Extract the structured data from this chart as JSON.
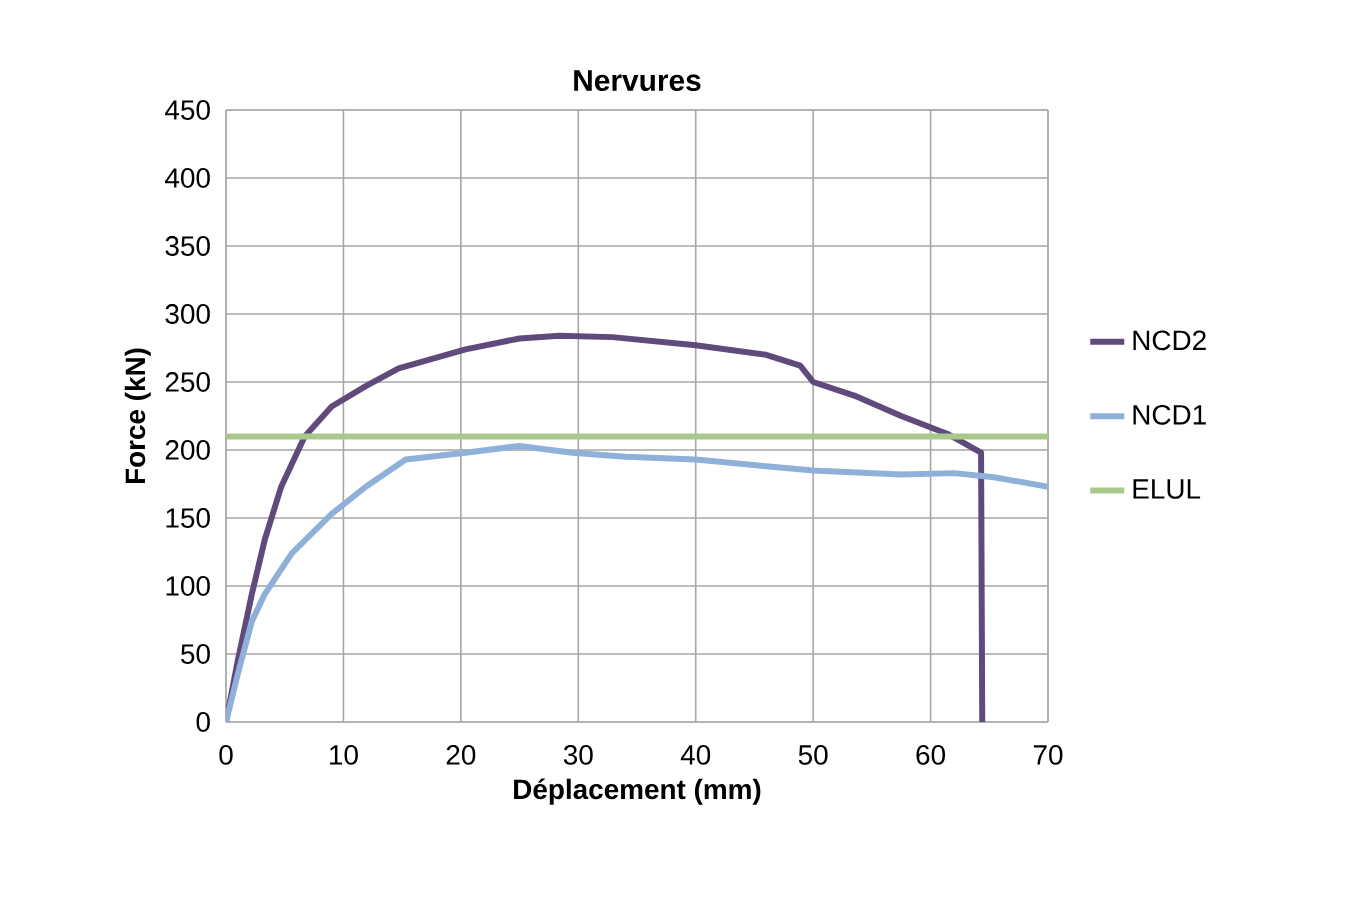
{
  "chart_data": {
    "type": "line",
    "title": "Nervures",
    "xlabel": "Déplacement (mm)",
    "ylabel": "Force (kN)",
    "xlim": [
      0,
      70
    ],
    "xticks": [
      0,
      10,
      20,
      30,
      40,
      50,
      60,
      70
    ],
    "ylim": [
      0,
      450
    ],
    "yticks": [
      0,
      50,
      100,
      150,
      200,
      250,
      300,
      350,
      400,
      450
    ],
    "grid": true,
    "legend": "right",
    "marker": "none",
    "line_style": "solid",
    "series": [
      {
        "name": "NCD2",
        "color": "#604a7b",
        "x": [
          0,
          1,
          2.2,
          3.3,
          4.7,
          6.7,
          9,
          11.9,
          14.7,
          20.4,
          25,
          28.4,
          32.9,
          40,
          46,
          48.9,
          50,
          53.5,
          57.5,
          61.4,
          64.3,
          64.4
        ],
        "values": [
          0,
          45,
          94,
          134,
          173,
          210,
          232,
          247,
          260,
          274,
          282,
          284,
          283,
          277,
          270,
          262,
          250,
          240,
          225,
          212,
          198,
          0
        ]
      },
      {
        "name": "NCD1",
        "color": "#8fb0d9",
        "x": [
          0,
          1,
          2.2,
          3.3,
          5.6,
          9,
          11.9,
          15.3,
          20.4,
          25,
          29.5,
          34,
          40,
          46,
          50,
          57.5,
          62,
          65.4,
          70
        ],
        "values": [
          0,
          35,
          74,
          94,
          124,
          153,
          173,
          193,
          198,
          203,
          198,
          195,
          193,
          188,
          185,
          182,
          183,
          180,
          173
        ]
      },
      {
        "name": "ELUL",
        "color": "#a9c98b",
        "x": [
          0,
          70
        ],
        "values": [
          210,
          210
        ]
      }
    ]
  }
}
